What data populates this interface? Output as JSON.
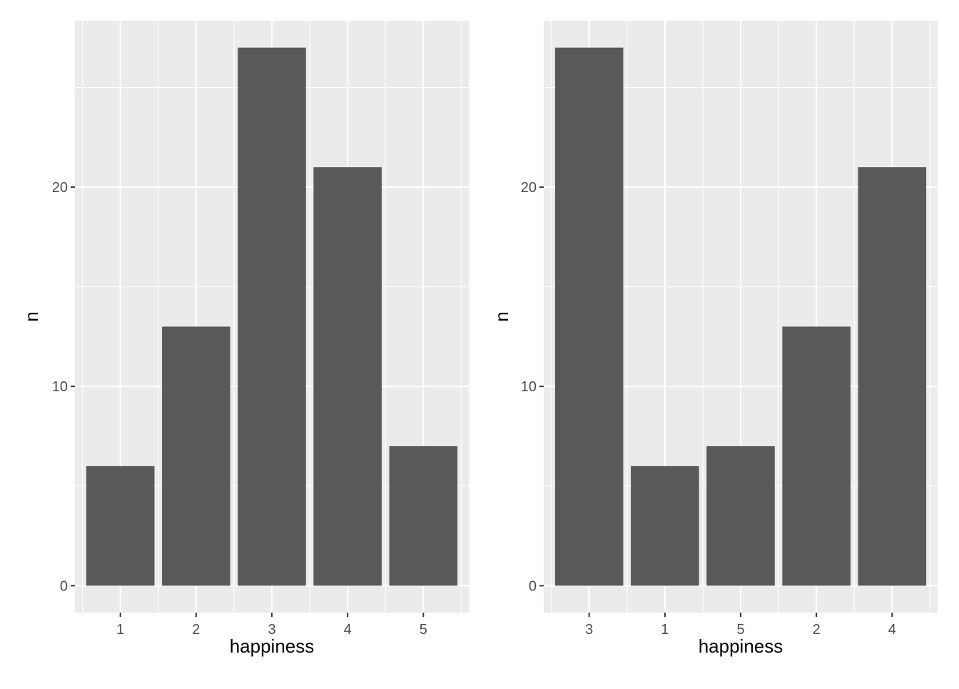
{
  "colors": {
    "panel_background": "#ebebeb",
    "major_grid": "#ffffff",
    "bar_fill": "#595959",
    "tick_mark": "#333333",
    "tick_text": "#4d4d4d",
    "axis_title": "#000000"
  },
  "chart_data": [
    {
      "type": "bar",
      "categories": [
        "1",
        "2",
        "3",
        "4",
        "5"
      ],
      "values": [
        6,
        13,
        27,
        21,
        7
      ],
      "xlabel": "happiness",
      "ylabel": "n",
      "ylim": [
        -1.35,
        28.35
      ],
      "yticks": [
        0,
        10,
        20
      ],
      "yticks_minor": [
        5,
        15,
        25
      ],
      "grid": true
    },
    {
      "type": "bar",
      "categories": [
        "3",
        "1",
        "5",
        "2",
        "4"
      ],
      "values": [
        27,
        6,
        7,
        13,
        21
      ],
      "xlabel": "happiness",
      "ylabel": "n",
      "ylim": [
        -1.35,
        28.35
      ],
      "yticks": [
        0,
        10,
        20
      ],
      "yticks_minor": [
        5,
        15,
        25
      ],
      "grid": true
    }
  ]
}
